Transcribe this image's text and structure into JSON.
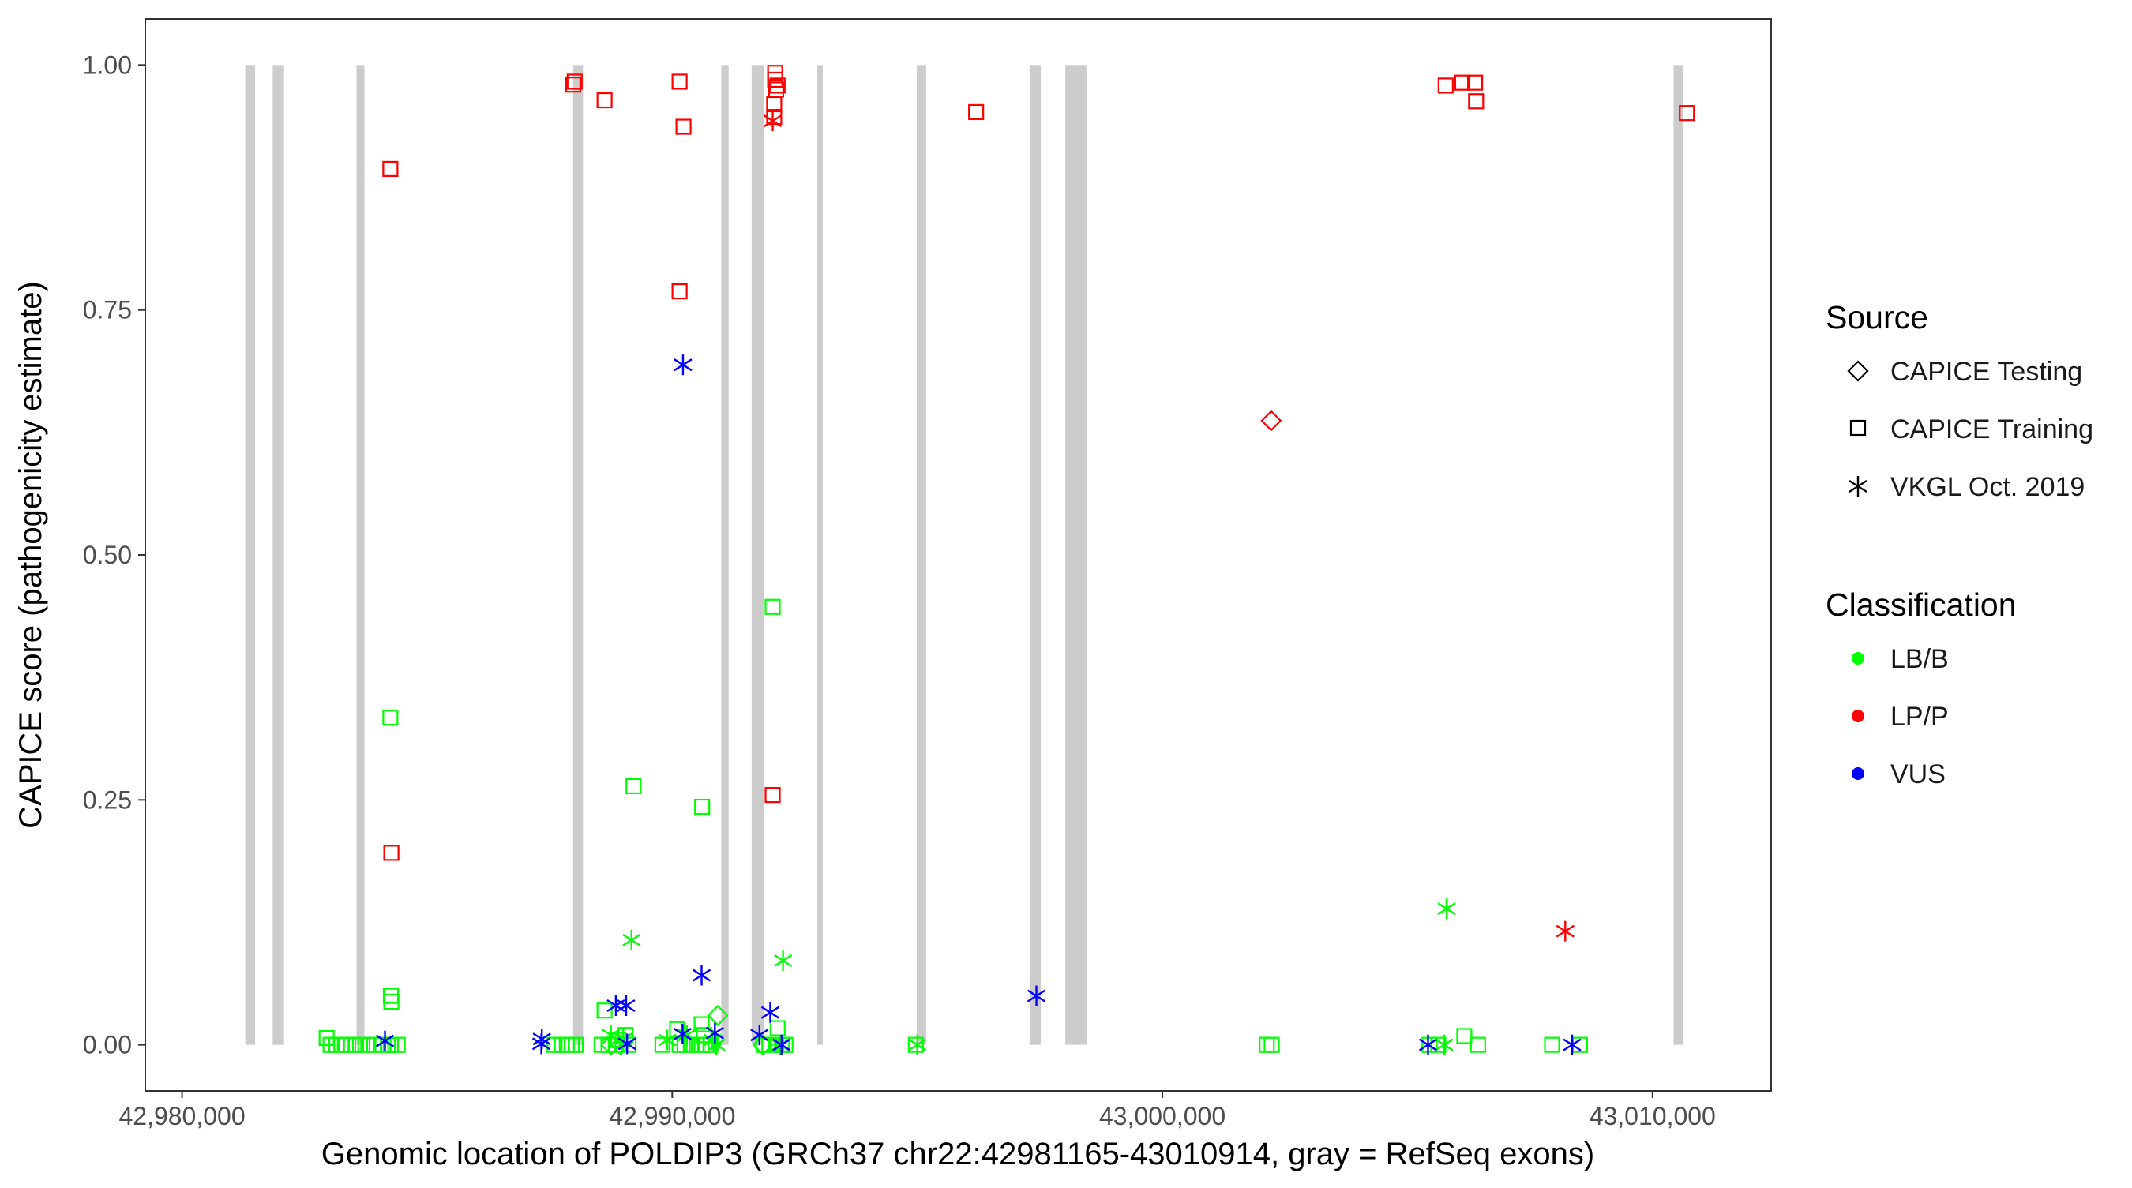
{
  "chart_data": {
    "type": "scatter",
    "xlabel": "Genomic location of POLDIP3 (GRCh37 chr22:42981165-43010914, gray = RefSeq exons)",
    "ylabel": "CAPICE score (pathogenicity estimate)",
    "xlim": [
      42979250,
      43012420
    ],
    "ylim": [
      -0.047,
      1.047
    ],
    "x_ticks": [
      42980000,
      42990000,
      43000000,
      43010000
    ],
    "x_tick_labels": [
      "42,980,000",
      "42,990,000",
      "43,000,000",
      "43,010,000"
    ],
    "y_ticks": [
      0,
      0.25,
      0.5,
      0.75,
      1.0
    ],
    "y_tick_labels": [
      "0.00",
      "0.25",
      "0.50",
      "0.75",
      "1.00"
    ],
    "grid": false,
    "legend_position": "right",
    "legend": {
      "source_title": "Source",
      "source_entries": [
        {
          "label": "CAPICE Testing",
          "shape": "diamond"
        },
        {
          "label": "CAPICE Training",
          "shape": "square"
        },
        {
          "label": "VKGL Oct. 2019",
          "shape": "asterisk"
        }
      ],
      "class_title": "Classification",
      "class_entries": [
        {
          "label": "LB/B",
          "color": "#00ff00"
        },
        {
          "label": "LP/P",
          "color": "#ff0000"
        },
        {
          "label": "VUS",
          "color": "#0000ff"
        }
      ]
    },
    "colors": {
      "LB/B": "#00ff00",
      "LP/P": "#ff0000",
      "VUS": "#0000ff",
      "exon": "#cccccc"
    },
    "exons": [
      [
        42981290,
        42981490
      ],
      [
        42981850,
        42982080
      ],
      [
        42983560,
        42983720
      ],
      [
        42987980,
        42988180
      ],
      [
        42991000,
        42991150
      ],
      [
        42991620,
        42991870
      ],
      [
        42992960,
        42993070
      ],
      [
        42994990,
        42995180
      ],
      [
        42997290,
        42997520
      ],
      [
        42998020,
        42998460
      ],
      [
        43010430,
        43010620
      ]
    ],
    "series": [
      {
        "source": "CAPICE Training",
        "classification": "LP/P",
        "points": [
          [
            42984250,
            0.894
          ],
          [
            42984270,
            0.196
          ],
          [
            42987980,
            0.98
          ],
          [
            42988010,
            0.983
          ],
          [
            42988620,
            0.964
          ],
          [
            42990150,
            0.983
          ],
          [
            42990230,
            0.937
          ],
          [
            42990150,
            0.769
          ],
          [
            42992100,
            0.992
          ],
          [
            42992100,
            0.985
          ],
          [
            42992150,
            0.979
          ],
          [
            42992120,
            0.975
          ],
          [
            42992080,
            0.96
          ],
          [
            42992080,
            0.947
          ],
          [
            42992050,
            0.255
          ],
          [
            42996200,
            0.952
          ],
          [
            43005780,
            0.979
          ],
          [
            43006120,
            0.982
          ],
          [
            43006380,
            0.982
          ],
          [
            43006400,
            0.963
          ],
          [
            43010700,
            0.951
          ]
        ]
      },
      {
        "source": "CAPICE Testing",
        "classification": "LP/P",
        "points": [
          [
            43002220,
            0.637
          ]
        ]
      },
      {
        "source": "VKGL Oct. 2019",
        "classification": "LP/P",
        "points": [
          [
            42992050,
            0.943
          ],
          [
            43008220,
            0.116
          ]
        ]
      },
      {
        "source": "CAPICE Training",
        "classification": "LB/B",
        "points": [
          [
            42982950,
            0.007
          ],
          [
            42983030,
            0.0
          ],
          [
            42983150,
            0.0
          ],
          [
            42983250,
            0.0
          ],
          [
            42983340,
            0.0
          ],
          [
            42983450,
            0.0
          ],
          [
            42983550,
            0.0
          ],
          [
            42983680,
            0.0
          ],
          [
            42983800,
            0.0
          ],
          [
            42983920,
            0.0
          ],
          [
            42984060,
            0.0
          ],
          [
            42984200,
            0.0
          ],
          [
            42984200,
            0.0
          ],
          [
            42984260,
            0.0
          ],
          [
            42984400,
            0.0
          ],
          [
            42984250,
            0.334
          ],
          [
            42984260,
            0.05
          ],
          [
            42984270,
            0.044
          ],
          [
            42987600,
            0.0
          ],
          [
            42987750,
            0.0
          ],
          [
            42987850,
            0.0
          ],
          [
            42987950,
            0.0
          ],
          [
            42988030,
            0.0
          ],
          [
            42988560,
            0.0
          ],
          [
            42988700,
            0.0
          ],
          [
            42988850,
            0.0
          ],
          [
            42988620,
            0.035
          ],
          [
            42988900,
            0.005
          ],
          [
            42989050,
            0.01
          ],
          [
            42989110,
            0.0
          ],
          [
            42989210,
            0.264
          ],
          [
            42989800,
            0.0
          ],
          [
            42990100,
            0.016
          ],
          [
            42990150,
            0.0
          ],
          [
            42990250,
            0.0
          ],
          [
            42990380,
            0.0
          ],
          [
            42990500,
            0.0
          ],
          [
            42990600,
            0.0
          ],
          [
            42990650,
            0.01
          ],
          [
            42990700,
            0.0
          ],
          [
            42990780,
            0.0
          ],
          [
            42990600,
            0.021
          ],
          [
            42990610,
            0.243
          ],
          [
            42992050,
            0.447
          ],
          [
            42991860,
            0.0
          ],
          [
            42991980,
            0.0
          ],
          [
            42992120,
            0.0
          ],
          [
            42992240,
            0.0
          ],
          [
            42992310,
            0.0
          ],
          [
            42992150,
            0.017
          ],
          [
            42994970,
            0.0
          ],
          [
            43002130,
            0.0
          ],
          [
            43002230,
            0.0
          ],
          [
            43005450,
            0.0
          ],
          [
            43005630,
            0.0
          ],
          [
            43006160,
            0.009
          ],
          [
            43006440,
            0.0
          ],
          [
            43007950,
            0.0
          ],
          [
            43008520,
            0.0
          ]
        ]
      },
      {
        "source": "CAPICE Testing",
        "classification": "LB/B",
        "points": [
          [
            42988750,
            0.0
          ],
          [
            42988950,
            0.0
          ],
          [
            42990930,
            0.03
          ],
          [
            42991850,
            0.0
          ]
        ]
      },
      {
        "source": "VKGL Oct. 2019",
        "classification": "LB/B",
        "points": [
          [
            42989170,
            0.107
          ],
          [
            42988750,
            0.01
          ],
          [
            42989000,
            0.006
          ],
          [
            42989900,
            0.005
          ],
          [
            42990300,
            0.01
          ],
          [
            42990820,
            0.005
          ],
          [
            42990900,
            0.0
          ],
          [
            42992260,
            0.086
          ],
          [
            42992200,
            0.0
          ],
          [
            42995000,
            0.0
          ],
          [
            43005800,
            0.139
          ],
          [
            43005750,
            0.0
          ]
        ]
      },
      {
        "source": "VKGL Oct. 2019",
        "classification": "VUS",
        "points": [
          [
            42990220,
            0.694
          ],
          [
            42990600,
            0.071
          ],
          [
            42997430,
            0.05
          ],
          [
            42992000,
            0.033
          ],
          [
            42988850,
            0.04
          ],
          [
            42989060,
            0.04
          ],
          [
            42984140,
            0.004
          ],
          [
            42987340,
            0.006
          ],
          [
            42987330,
            0.001
          ],
          [
            42989080,
            0.001
          ],
          [
            42990210,
            0.011
          ],
          [
            42990870,
            0.012
          ],
          [
            42991780,
            0.01
          ],
          [
            42992230,
            0.0
          ],
          [
            43005420,
            0.0
          ],
          [
            43008360,
            0.0
          ]
        ]
      }
    ]
  }
}
